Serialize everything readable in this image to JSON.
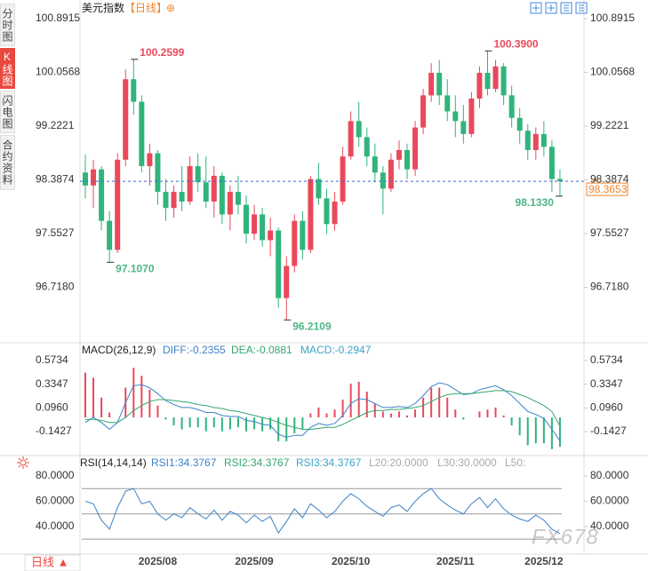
{
  "sidebar": {
    "tabs": [
      "分时图",
      "K线图",
      "闪电图",
      "合约资料"
    ]
  },
  "header": {
    "title": "美元指数",
    "period": "【日线】",
    "icon": "⊕"
  },
  "footer": {
    "period": "日线 ▲"
  },
  "watermark": "FX678",
  "chart_data": [
    {
      "type": "candlestick",
      "categories": [
        null,
        null,
        null,
        null,
        null,
        null,
        null,
        null,
        null,
        "2025/08",
        null,
        null,
        null,
        null,
        null,
        null,
        null,
        null,
        null,
        null,
        null,
        "2025/09",
        null,
        null,
        null,
        null,
        null,
        null,
        null,
        null,
        null,
        null,
        null,
        "2025/10",
        null,
        null,
        null,
        null,
        null,
        null,
        null,
        null,
        null,
        null,
        null,
        null,
        "2025/11",
        null,
        null,
        null,
        null,
        null,
        null,
        null,
        null,
        null,
        null,
        "2025/12",
        null,
        null
      ],
      "open": [
        98.5,
        98.3,
        98.55,
        97.75,
        97.3,
        98.7,
        99.95,
        99.6,
        98.6,
        98.8,
        98.2,
        97.95,
        98.2,
        98.05,
        98.6,
        98.35,
        98.05,
        98.45,
        97.85,
        98.2,
        98.0,
        97.55,
        97.85,
        97.45,
        97.6,
        96.55,
        97.05,
        97.75,
        97.3,
        98.4,
        98.1,
        97.7,
        98.05,
        98.75,
        99.3,
        99.05,
        98.75,
        98.5,
        98.25,
        98.7,
        98.85,
        98.55,
        99.2,
        99.7,
        100.05,
        99.7,
        99.45,
        99.3,
        99.1,
        99.65,
        100.05,
        99.8,
        100.15,
        99.7,
        99.35,
        99.15,
        98.85,
        99.1,
        98.9,
        98.4
      ],
      "high": [
        98.78,
        98.7,
        98.6,
        97.9,
        98.8,
        100.1,
        100.2599,
        99.7,
        98.95,
        98.85,
        98.4,
        98.3,
        98.6,
        98.75,
        98.8,
        98.75,
        98.6,
        98.5,
        98.3,
        98.45,
        98.15,
        98.0,
        97.95,
        97.8,
        97.65,
        97.2,
        97.85,
        97.9,
        98.45,
        98.65,
        98.25,
        98.2,
        98.9,
        99.45,
        99.6,
        99.2,
        98.95,
        98.6,
        98.8,
        99.0,
        98.95,
        99.3,
        99.8,
        100.2,
        100.25,
        99.95,
        99.7,
        99.55,
        99.75,
        100.15,
        100.39,
        100.25,
        100.2,
        99.85,
        99.5,
        99.25,
        99.2,
        99.3,
        99.0,
        98.55
      ],
      "low": [
        98.1,
        97.95,
        97.6,
        97.107,
        97.25,
        98.6,
        99.4,
        98.5,
        98.3,
        98.0,
        97.75,
        97.8,
        97.9,
        98.0,
        98.2,
        97.95,
        97.8,
        97.7,
        97.6,
        97.85,
        97.4,
        97.45,
        97.35,
        97.2,
        96.4,
        96.2109,
        96.95,
        97.15,
        97.25,
        98.0,
        97.55,
        97.6,
        98.0,
        98.7,
        98.9,
        98.6,
        98.35,
        97.85,
        98.2,
        98.55,
        98.4,
        98.45,
        99.1,
        99.6,
        99.55,
        99.3,
        99.05,
        98.95,
        99.05,
        99.5,
        99.7,
        99.75,
        99.55,
        99.2,
        98.95,
        98.7,
        98.7,
        98.75,
        98.2,
        98.133
      ],
      "close": [
        98.3,
        98.55,
        97.75,
        97.3,
        98.7,
        99.95,
        99.6,
        98.6,
        98.8,
        98.2,
        97.95,
        98.2,
        98.05,
        98.6,
        98.35,
        98.05,
        98.45,
        97.85,
        98.2,
        98.0,
        97.55,
        97.85,
        97.45,
        97.6,
        96.55,
        97.05,
        97.75,
        97.3,
        98.4,
        98.1,
        97.7,
        98.05,
        98.75,
        99.3,
        99.05,
        98.75,
        98.5,
        98.25,
        98.7,
        98.85,
        98.55,
        99.2,
        99.7,
        100.05,
        99.7,
        99.45,
        99.3,
        99.1,
        99.65,
        100.05,
        99.8,
        100.15,
        99.7,
        99.35,
        99.15,
        98.85,
        99.1,
        98.9,
        98.4,
        98.3653
      ],
      "up_color": "#e9495a",
      "down_color": "#30b47c",
      "ylim": [
        95.8833,
        100.8915
      ],
      "yticks": [
        100.8915,
        100.0568,
        99.2221,
        98.3874,
        97.5527,
        {
          "value": 96.718,
          "label": "96.7180"
        }
      ],
      "last_price": 98.3653,
      "annotations": [
        100.2599,
        {
          "value": 97.107,
          "label": "97.1070"
        },
        96.2109,
        {
          "value": 100.39,
          "label": "100.3900"
        },
        {
          "value": 98.133,
          "label": "98.1330"
        }
      ],
      "grid": false
    },
    {
      "type": "macd",
      "title": "MACD(26,12,9)",
      "legend": [
        {
          "text": "DIFF:-0.2355",
          "color": "#3c82c8"
        },
        {
          "text": "DEA:-0.0881",
          "color": "#35a56e"
        },
        {
          "text": "MACD:-0.2947",
          "color": "#3aa6c9"
        }
      ],
      "histogram": {
        "up_color": "#e9495a",
        "down_color": "#30b47c",
        "values": [
          0.45,
          0.4,
          0.2,
          0.05,
          0.0,
          0.3,
          0.5,
          0.42,
          0.28,
          0.12,
          -0.02,
          -0.08,
          -0.12,
          -0.1,
          -0.1,
          -0.14,
          -0.1,
          -0.14,
          -0.12,
          -0.1,
          -0.14,
          -0.12,
          -0.14,
          -0.12,
          -0.24,
          -0.24,
          -0.16,
          -0.12,
          0.04,
          0.1,
          0.04,
          0.08,
          0.18,
          0.34,
          0.36,
          0.26,
          0.14,
          0.06,
          0.04,
          0.06,
          0.02,
          0.08,
          0.2,
          0.3,
          0.3,
          0.2,
          0.08,
          -0.02,
          0.0,
          0.06,
          0.08,
          0.1,
          0.02,
          -0.08,
          -0.18,
          -0.28,
          -0.26,
          -0.26,
          -0.32,
          -0.2947
        ]
      },
      "series": [
        {
          "color": "#3c82c8",
          "values": [
            -0.05,
            0.0,
            -0.05,
            -0.12,
            -0.05,
            0.15,
            0.32,
            0.33,
            0.3,
            0.24,
            0.17,
            0.13,
            0.1,
            0.1,
            0.08,
            0.05,
            0.05,
            0.02,
            0.01,
            0.01,
            -0.03,
            -0.04,
            -0.07,
            -0.08,
            -0.17,
            -0.2,
            -0.18,
            -0.18,
            -0.1,
            -0.06,
            -0.08,
            -0.06,
            0.02,
            0.14,
            0.19,
            0.18,
            0.14,
            0.1,
            0.1,
            0.11,
            0.1,
            0.14,
            0.22,
            0.31,
            0.35,
            0.33,
            0.28,
            0.23,
            0.24,
            0.28,
            0.3,
            0.32,
            0.28,
            0.22,
            0.14,
            0.06,
            0.03,
            -0.01,
            -0.12,
            -0.2355
          ]
        },
        {
          "color": "#35a56e",
          "values": [
            -0.02,
            -0.02,
            -0.03,
            -0.05,
            -0.05,
            0.0,
            0.07,
            0.12,
            0.16,
            0.18,
            0.18,
            0.17,
            0.16,
            0.15,
            0.13,
            0.12,
            0.1,
            0.09,
            0.07,
            0.06,
            0.04,
            0.02,
            0.0,
            -0.02,
            -0.05,
            -0.08,
            -0.1,
            -0.12,
            -0.12,
            -0.11,
            -0.1,
            -0.1,
            -0.07,
            -0.03,
            0.01,
            0.05,
            0.07,
            0.07,
            0.08,
            0.08,
            0.09,
            0.1,
            0.12,
            0.16,
            0.2,
            0.23,
            0.24,
            0.24,
            0.24,
            0.25,
            0.26,
            0.27,
            0.27,
            0.26,
            0.23,
            0.2,
            0.16,
            0.12,
            0.06,
            -0.0881
          ]
        }
      ],
      "ylim": [
        -0.357,
        0.627
      ],
      "yticks": [
        0.5734,
        0.3347,
        {
          "value": 0.096,
          "label": "0.0960"
        },
        -0.1427
      ],
      "grid": false
    },
    {
      "type": "line",
      "title": "RSI(14,14,14)",
      "legend": [
        {
          "text": "RSI1:34.3767",
          "color": "#3c82c8"
        },
        {
          "text": "RSI2:34.3767",
          "color": "#35a56e"
        },
        {
          "text": "RSI3:34.3767",
          "color": "#3aa6c9"
        },
        {
          "text": "L20:20.0000",
          "color": "#aaaaaa"
        },
        {
          "text": "L30:30.0000",
          "color": "#aaaaaa"
        },
        {
          "text": "L50:",
          "color": "#aaaaaa"
        }
      ],
      "series": [
        {
          "color": "#3c82c8",
          "values": [
            60,
            58,
            45,
            38,
            55,
            68,
            70,
            58,
            60,
            50,
            45,
            50,
            47,
            55,
            50,
            46,
            53,
            45,
            52,
            49,
            43,
            49,
            44,
            48,
            35,
            44,
            54,
            47,
            58,
            53,
            47,
            52,
            60,
            66,
            62,
            56,
            52,
            48,
            55,
            57,
            52,
            60,
            66,
            70,
            62,
            57,
            53,
            50,
            58,
            63,
            55,
            62,
            54,
            49,
            46,
            44,
            49,
            45,
            38,
            34.3767
          ]
        }
      ],
      "reference_lines": [
        70,
        50,
        30
      ],
      "ylim": [
        21,
        85.6
      ],
      "yticks": [
        {
          "value": 80,
          "label": "80.0000"
        },
        {
          "value": 60,
          "label": "60.0000"
        },
        {
          "value": 40,
          "label": "40.0000"
        }
      ],
      "grid": false
    }
  ]
}
